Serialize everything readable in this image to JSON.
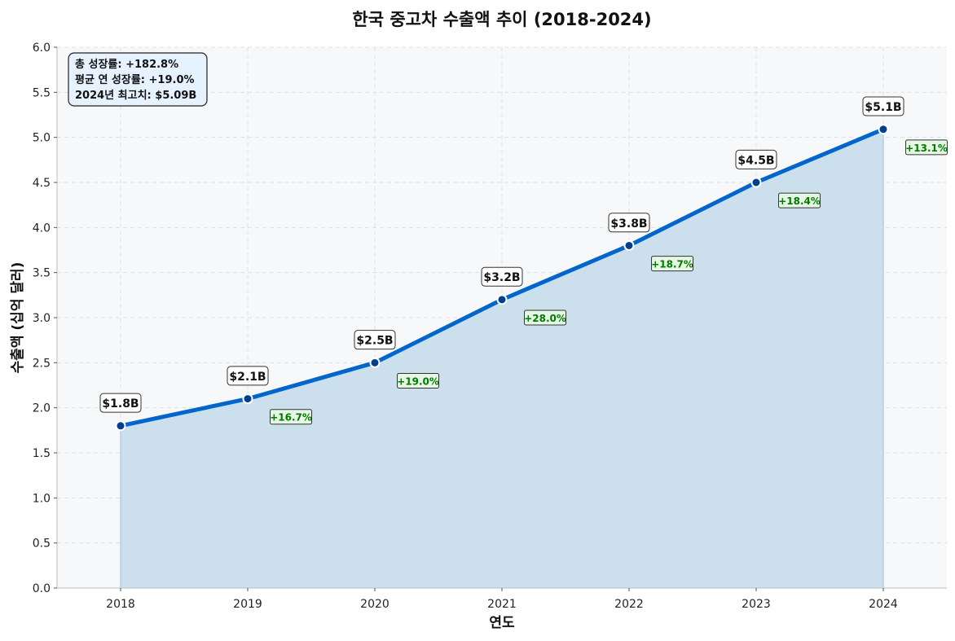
{
  "chart_data": {
    "type": "area",
    "title": "한국 중고차 수출액 추이 (2018-2024)",
    "xlabel": "연도",
    "ylabel": "수출액 (십억 달러)",
    "xlim": [
      2017.5,
      2024.5
    ],
    "ylim": [
      0,
      6
    ],
    "yticks": [
      "0.0",
      "0.5",
      "1.0",
      "1.5",
      "2.0",
      "2.5",
      "3.0",
      "3.5",
      "4.0",
      "4.5",
      "5.0",
      "5.5",
      "6.0"
    ],
    "x": [
      2018,
      2019,
      2020,
      2021,
      2022,
      2023,
      2024
    ],
    "values": [
      1.8,
      2.1,
      2.5,
      3.2,
      3.8,
      4.5,
      5.09
    ],
    "value_labels": [
      "$1.8B",
      "$2.1B",
      "$2.5B",
      "$3.2B",
      "$3.8B",
      "$4.5B",
      "$5.1B"
    ],
    "growth_labels": [
      "+16.7%",
      "+19.0%",
      "+28.0%",
      "+18.7%",
      "+18.4%",
      "+13.1%"
    ],
    "grid": true,
    "colors": {
      "line": "#0066cc",
      "marker": "#003f8f",
      "fill": "#cbdfec",
      "plot_bg": "#f7f8fa",
      "growth_text": "#007a00",
      "growth_bg": "#e6f7e6",
      "info_bg": "#e6f2ff"
    },
    "info_box": {
      "lines": [
        "총 성장률: +182.8%",
        "평균 연 성장률: +19.0%",
        "2024년 최고치: $5.09B"
      ],
      "placement": "top-left"
    }
  }
}
